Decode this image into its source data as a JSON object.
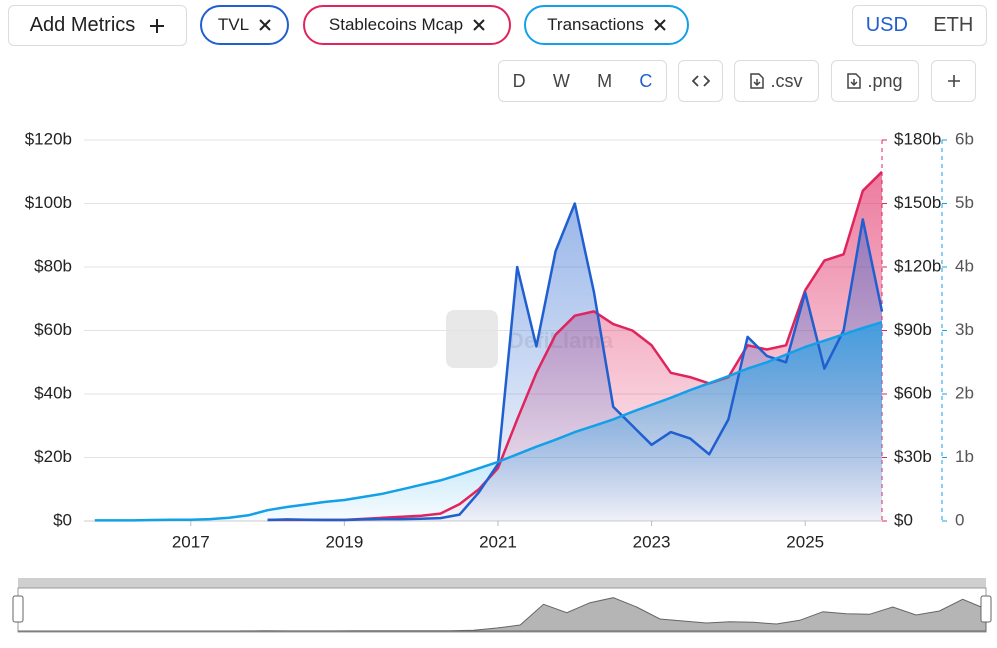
{
  "toolbar": {
    "add_metrics": "Add Metrics",
    "currency": [
      "USD",
      "ETH"
    ],
    "periods": [
      "D",
      "W",
      "M",
      "C"
    ],
    "csv": ".csv",
    "png": ".png"
  },
  "chart_data": {
    "type": "line",
    "watermark": "DefiLlama",
    "x": [
      2015.75,
      2016,
      2016.25,
      2016.5,
      2016.75,
      2017,
      2017.25,
      2017.5,
      2017.75,
      2018,
      2018.25,
      2018.5,
      2018.75,
      2019,
      2019.25,
      2019.5,
      2019.75,
      2020,
      2020.25,
      2020.5,
      2020.75,
      2021,
      2021.25,
      2021.5,
      2021.75,
      2022,
      2022.25,
      2022.5,
      2022.75,
      2023,
      2023.25,
      2023.5,
      2023.75,
      2024,
      2024.25,
      2024.5,
      2024.75,
      2025,
      2025.25,
      2025.5,
      2025.75,
      2026
    ],
    "xlim": [
      2015.61,
      2026.0
    ],
    "xticks": [
      2017,
      2019,
      2021,
      2023,
      2025
    ],
    "ylim": [
      0,
      120
    ],
    "yticks": [
      {
        "value": 0,
        "label": "$0"
      },
      {
        "value": 20,
        "label": "$20b"
      },
      {
        "value": 40,
        "label": "$40b"
      },
      {
        "value": 60,
        "label": "$60b"
      },
      {
        "value": 80,
        "label": "$80b"
      },
      {
        "value": 100,
        "label": "$100b"
      },
      {
        "value": 120,
        "label": "$120b"
      }
    ],
    "y2lim": [
      0,
      180
    ],
    "y2ticks": [
      {
        "value": 0,
        "label": "$0"
      },
      {
        "value": 30,
        "label": "$30b"
      },
      {
        "value": 60,
        "label": "$60b"
      },
      {
        "value": 90,
        "label": "$90b"
      },
      {
        "value": 120,
        "label": "$120b"
      },
      {
        "value": 150,
        "label": "$150b"
      },
      {
        "value": 180,
        "label": "$180b"
      }
    ],
    "y3lim": [
      0,
      6
    ],
    "y3ticks": [
      0,
      {
        "value": 1,
        "label": "1b"
      },
      {
        "value": 2,
        "label": "2b"
      },
      {
        "value": 3,
        "label": "3b"
      },
      {
        "value": 4,
        "label": "4b"
      },
      {
        "value": 5,
        "label": "5b"
      },
      {
        "value": 6,
        "label": "6b"
      }
    ],
    "grid": true,
    "series": [
      {
        "name": "TVL",
        "color": "#1f5fcf",
        "axis": "y",
        "values": [
          null,
          null,
          null,
          null,
          null,
          null,
          null,
          null,
          null,
          0.3,
          0.5,
          0.4,
          0.3,
          0.3,
          0.5,
          0.6,
          0.6,
          0.7,
          0.9,
          2,
          9,
          18,
          80,
          55,
          85,
          100,
          72,
          36,
          30,
          24,
          28,
          26,
          21,
          32,
          58,
          52,
          50,
          72,
          48,
          60,
          95,
          66
        ]
      },
      {
        "name": "Stablecoins Mcap",
        "color": "#e0245e",
        "axis": "y2",
        "values": [
          null,
          null,
          null,
          null,
          null,
          null,
          null,
          null,
          null,
          0.5,
          0.5,
          0.5,
          0.5,
          0.5,
          1,
          1.5,
          2,
          2.5,
          3.5,
          8,
          15,
          25,
          48,
          70,
          88,
          97,
          99,
          93,
          90,
          83,
          70,
          68,
          65,
          68,
          83,
          81,
          83,
          109,
          123,
          126,
          156,
          165
        ]
      },
      {
        "name": "Transactions",
        "color": "#14a0e8",
        "axis": "y3",
        "values": [
          0.01,
          0.01,
          0.01,
          0.015,
          0.02,
          0.02,
          0.03,
          0.05,
          0.09,
          0.17,
          0.22,
          0.26,
          0.3,
          0.33,
          0.38,
          0.43,
          0.5,
          0.57,
          0.64,
          0.73,
          0.83,
          0.93,
          1.05,
          1.17,
          1.28,
          1.4,
          1.5,
          1.6,
          1.72,
          1.83,
          1.94,
          2.06,
          2.17,
          2.28,
          2.4,
          2.5,
          2.62,
          2.74,
          2.84,
          2.94,
          3.04,
          3.13
        ]
      }
    ]
  }
}
